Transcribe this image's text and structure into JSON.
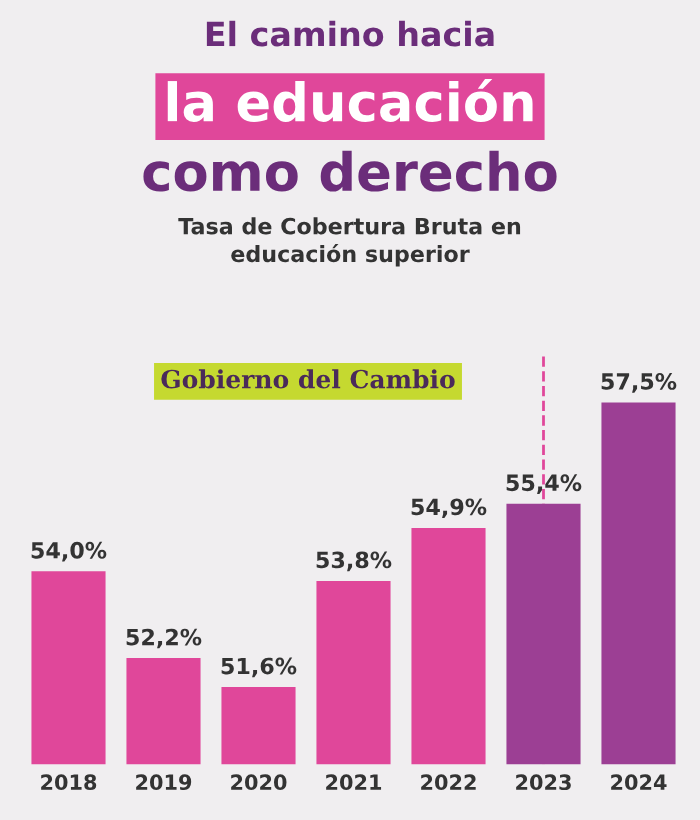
{
  "chart_data": {
    "type": "bar",
    "title": "El camino hacia\nla educación\ncomo derecho",
    "subtitle": "Tasa de Cobertura Bruta en\neducación superior",
    "categories": [
      "2018",
      "2019",
      "2020",
      "2021",
      "2022",
      "2023",
      "2024"
    ],
    "values": [
      54.0,
      52.2,
      51.6,
      53.8,
      54.9,
      55.4,
      57.5
    ],
    "value_labels": [
      "54,0%",
      "52,2%",
      "51,6%",
      "53,8%",
      "54,9%",
      "55,4%",
      "57,5%"
    ],
    "colors": [
      "#e0479a",
      "#e0479a",
      "#e0479a",
      "#e0479a",
      "#e0479a",
      "#9c3f94",
      "#9c3f94"
    ],
    "ylim": [
      50,
      58.5
    ],
    "tick_labels": "x",
    "grid": false,
    "legend": false,
    "ref_lines": [
      {
        "axis": "x",
        "value": "2023",
        "color": "#e0479a",
        "line_style": "dashed"
      }
    ],
    "annotations": [
      "Gobierno del Cambio"
    ]
  }
}
